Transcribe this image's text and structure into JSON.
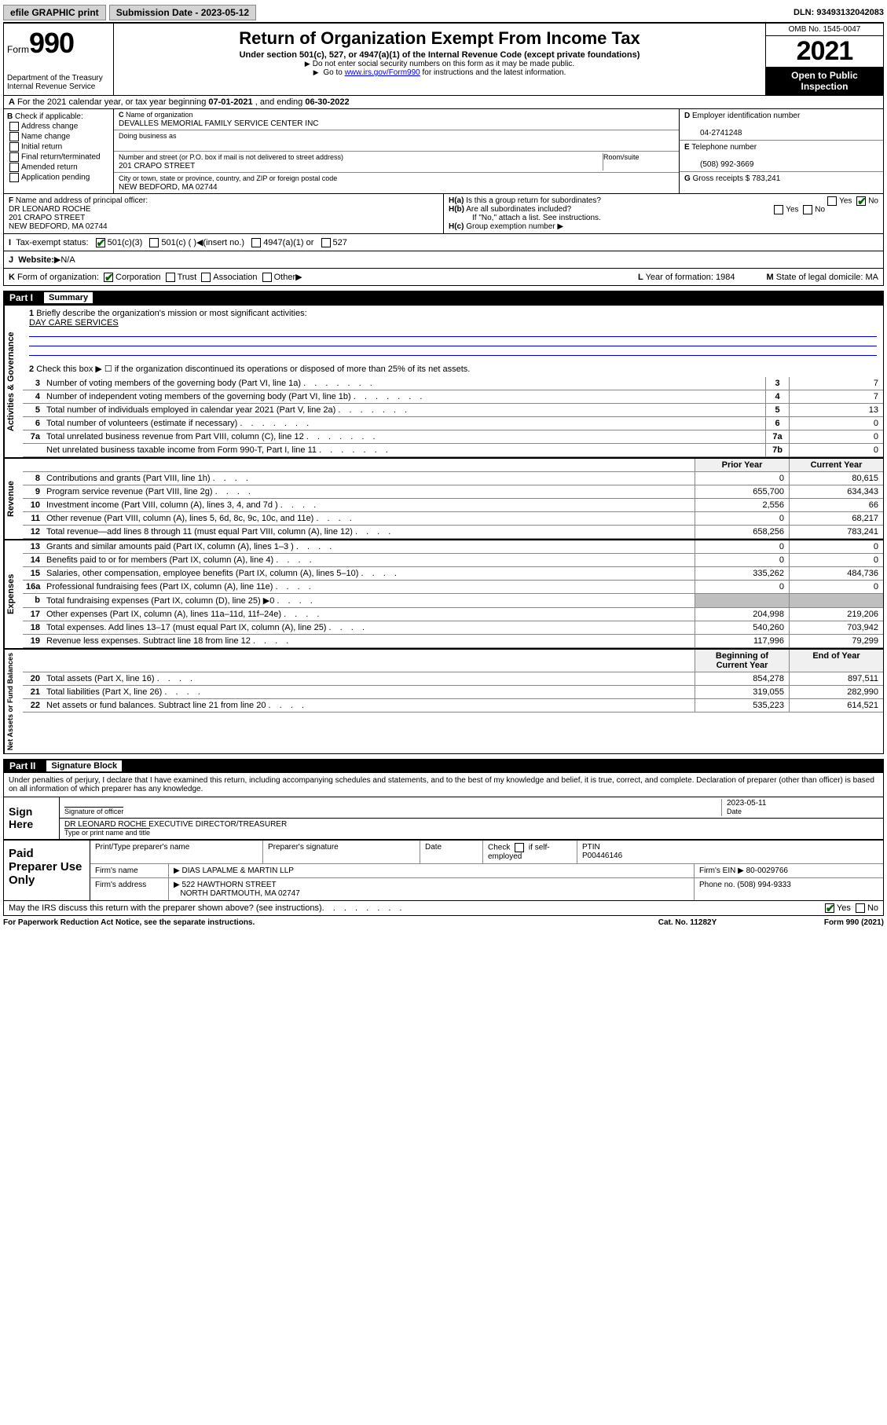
{
  "topbar": {
    "efile": "efile GRAPHIC print",
    "sub_label": "Submission Date - 2023-05-12",
    "dln": "DLN: 93493132042083"
  },
  "header": {
    "form_label": "Form",
    "form_no": "990",
    "dept": "Department of the Treasury",
    "irs": "Internal Revenue Service",
    "title": "Return of Organization Exempt From Income Tax",
    "sub1": "Under section 501(c), 527, or 4947(a)(1) of the Internal Revenue Code (except private foundations)",
    "sub2": "Do not enter social security numbers on this form as it may be made public.",
    "sub3_pre": "Go to ",
    "sub3_link": "www.irs.gov/Form990",
    "sub3_post": " for instructions and the latest information.",
    "omb": "OMB No. 1545-0047",
    "year": "2021",
    "inspect": "Open to Public Inspection"
  },
  "line_a": {
    "text_pre": "For the 2021 calendar year, or tax year beginning ",
    "begin": "07-01-2021",
    "mid": " , and ending ",
    "end": "06-30-2022"
  },
  "section_b": {
    "header": "Check if applicable:",
    "opts": [
      "Address change",
      "Name change",
      "Initial return",
      "Final return/terminated",
      "Amended return",
      "Application pending"
    ]
  },
  "section_c": {
    "name_lab": "Name of organization",
    "name": "DEVALLES MEMORIAL FAMILY SERVICE CENTER INC",
    "dba_lab": "Doing business as",
    "addr_lab": "Number and street (or P.O. box if mail is not delivered to street address)",
    "room_lab": "Room/suite",
    "addr": "201 CRAPO STREET",
    "city_lab": "City or town, state or province, country, and ZIP or foreign postal code",
    "city": "NEW BEDFORD, MA  02744"
  },
  "section_d": {
    "ein_lab": "Employer identification number",
    "ein": "04-2741248",
    "tel_lab": "Telephone number",
    "tel": "(508) 992-3669",
    "gross_lab": "Gross receipts $",
    "gross": "783,241"
  },
  "section_f": {
    "lab": "Name and address of principal officer:",
    "name": "DR LEONARD ROCHE",
    "addr1": "201 CRAPO STREET",
    "addr2": "NEW BEDFORD, MA  02744"
  },
  "section_h": {
    "ha": "Is this a group return for subordinates?",
    "hb": "Are all subordinates included?",
    "hb_note": "If \"No,\" attach a list. See instructions.",
    "hc": "Group exemption number"
  },
  "line_i": {
    "lab": "Tax-exempt status:",
    "o1": "501(c)(3)",
    "o2": "501(c) (   )",
    "o2b": "(insert no.)",
    "o3": "4947(a)(1) or",
    "o4": "527"
  },
  "line_j": {
    "lab": "Website:",
    "val": "N/A"
  },
  "line_k": {
    "lab": "Form of organization:",
    "opts": [
      "Corporation",
      "Trust",
      "Association",
      "Other"
    ],
    "year_lab": "Year of formation:",
    "year": "1984",
    "dom_lab": "State of legal domicile:",
    "dom": "MA"
  },
  "part1": {
    "num": "Part I",
    "title": "Summary"
  },
  "gov": {
    "label": "Activities & Governance",
    "l1_lab": "Briefly describe the organization's mission or most significant activities:",
    "l1_val": "DAY CARE SERVICES",
    "l2": "Check this box ▶ ☐  if the organization discontinued its operations or disposed of more than 25% of its net assets.",
    "rows": [
      {
        "n": "3",
        "t": "Number of voting members of the governing body (Part VI, line 1a)",
        "b": "3",
        "v": "7"
      },
      {
        "n": "4",
        "t": "Number of independent voting members of the governing body (Part VI, line 1b)",
        "b": "4",
        "v": "7"
      },
      {
        "n": "5",
        "t": "Total number of individuals employed in calendar year 2021 (Part V, line 2a)",
        "b": "5",
        "v": "13"
      },
      {
        "n": "6",
        "t": "Total number of volunteers (estimate if necessary)",
        "b": "6",
        "v": "0"
      },
      {
        "n": "7a",
        "t": "Total unrelated business revenue from Part VIII, column (C), line 12",
        "b": "7a",
        "v": "0"
      },
      {
        "n": "",
        "t": "Net unrelated business taxable income from Form 990-T, Part I, line 11",
        "b": "7b",
        "v": "0"
      }
    ]
  },
  "rev": {
    "label": "Revenue",
    "hdr_prior": "Prior Year",
    "hdr_curr": "Current Year",
    "rows": [
      {
        "n": "8",
        "t": "Contributions and grants (Part VIII, line 1h)",
        "p": "0",
        "c": "80,615"
      },
      {
        "n": "9",
        "t": "Program service revenue (Part VIII, line 2g)",
        "p": "655,700",
        "c": "634,343"
      },
      {
        "n": "10",
        "t": "Investment income (Part VIII, column (A), lines 3, 4, and 7d )",
        "p": "2,556",
        "c": "66"
      },
      {
        "n": "11",
        "t": "Other revenue (Part VIII, column (A), lines 5, 6d, 8c, 9c, 10c, and 11e)",
        "p": "0",
        "c": "68,217"
      },
      {
        "n": "12",
        "t": "Total revenue—add lines 8 through 11 (must equal Part VIII, column (A), line 12)",
        "p": "658,256",
        "c": "783,241"
      }
    ]
  },
  "exp": {
    "label": "Expenses",
    "rows": [
      {
        "n": "13",
        "t": "Grants and similar amounts paid (Part IX, column (A), lines 1–3 )",
        "p": "0",
        "c": "0"
      },
      {
        "n": "14",
        "t": "Benefits paid to or for members (Part IX, column (A), line 4)",
        "p": "0",
        "c": "0"
      },
      {
        "n": "15",
        "t": "Salaries, other compensation, employee benefits (Part IX, column (A), lines 5–10)",
        "p": "335,262",
        "c": "484,736"
      },
      {
        "n": "16a",
        "t": "Professional fundraising fees (Part IX, column (A), line 11e)",
        "p": "0",
        "c": "0"
      },
      {
        "n": "b",
        "t": "Total fundraising expenses (Part IX, column (D), line 25) ▶0",
        "p": "",
        "c": "",
        "shade": true
      },
      {
        "n": "17",
        "t": "Other expenses (Part IX, column (A), lines 11a–11d, 11f–24e)",
        "p": "204,998",
        "c": "219,206"
      },
      {
        "n": "18",
        "t": "Total expenses. Add lines 13–17 (must equal Part IX, column (A), line 25)",
        "p": "540,260",
        "c": "703,942"
      },
      {
        "n": "19",
        "t": "Revenue less expenses. Subtract line 18 from line 12",
        "p": "117,996",
        "c": "79,299"
      }
    ]
  },
  "net": {
    "label": "Net Assets or Fund Balances",
    "hdr_begin": "Beginning of Current Year",
    "hdr_end": "End of Year",
    "rows": [
      {
        "n": "20",
        "t": "Total assets (Part X, line 16)",
        "p": "854,278",
        "c": "897,511"
      },
      {
        "n": "21",
        "t": "Total liabilities (Part X, line 26)",
        "p": "319,055",
        "c": "282,990"
      },
      {
        "n": "22",
        "t": "Net assets or fund balances. Subtract line 21 from line 20",
        "p": "535,223",
        "c": "614,521"
      }
    ]
  },
  "part2": {
    "num": "Part II",
    "title": "Signature Block"
  },
  "penalties": "Under penalties of perjury, I declare that I have examined this return, including accompanying schedules and statements, and to the best of my knowledge and belief, it is true, correct, and complete. Declaration of preparer (other than officer) is based on all information of which preparer has any knowledge.",
  "sign": {
    "lab": "Sign Here",
    "sig_lab": "Signature of officer",
    "date_lab": "Date",
    "date": "2023-05-11",
    "name": "DR LEONARD ROCHE  EXECUTIVE DIRECTOR/TREASURER",
    "name_lab": "Type or print name and title"
  },
  "paid": {
    "lab": "Paid Preparer Use Only",
    "h1": "Print/Type preparer's name",
    "h2": "Preparer's signature",
    "h3": "Date",
    "h4_pre": "Check",
    "h4_post": "if self-employed",
    "h5": "PTIN",
    "ptin": "P00446146",
    "firm_lab": "Firm's name",
    "firm": "DIAS LAPALME & MARTIN LLP",
    "ein_lab": "Firm's EIN",
    "ein": "80-0029766",
    "addr_lab": "Firm's address",
    "addr1": "522 HAWTHORN STREET",
    "addr2": "NORTH DARTMOUTH, MA  02747",
    "phone_lab": "Phone no.",
    "phone": "(508) 994-9333"
  },
  "discuss": "May the IRS discuss this return with the preparer shown above? (see instructions)",
  "footer": {
    "left": "For Paperwork Reduction Act Notice, see the separate instructions.",
    "mid": "Cat. No. 11282Y",
    "right": "Form 990 (2021)"
  },
  "yesno": {
    "yes": "Yes",
    "no": "No"
  },
  "letters": {
    "A": "A",
    "B": "B",
    "C": "C",
    "D": "D",
    "E": "E",
    "F": "F",
    "G": "G",
    "H_a": "H(a)",
    "H_b": "H(b)",
    "H_c": "H(c)",
    "I": "I",
    "J": "J",
    "K": "K",
    "L": "L",
    "M": "M"
  }
}
